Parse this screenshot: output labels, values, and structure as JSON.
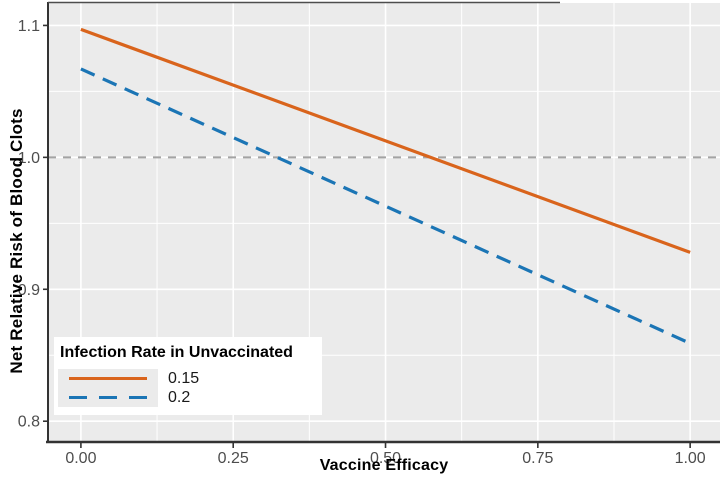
{
  "chart_data": {
    "type": "line",
    "title": "",
    "xlabel": "Vaccine Efficacy",
    "ylabel": "Net Relative Risk of Blood Clots",
    "x_domain": [
      -0.054,
      1.049
    ],
    "y_domain": [
      0.785,
      1.117
    ],
    "x_ticks": [
      {
        "value": 0.0,
        "label": "0.00"
      },
      {
        "value": 0.25,
        "label": "0.25"
      },
      {
        "value": 0.5,
        "label": "0.50"
      },
      {
        "value": 0.75,
        "label": "0.75"
      },
      {
        "value": 1.0,
        "label": "1.00"
      }
    ],
    "x_minor_ticks": [
      0.125,
      0.375,
      0.625,
      0.875
    ],
    "y_ticks": [
      {
        "value": 0.8,
        "label": "0.8"
      },
      {
        "value": 0.9,
        "label": "0.9"
      },
      {
        "value": 1.0,
        "label": "1.0"
      },
      {
        "value": 1.1,
        "label": "1.1"
      }
    ],
    "y_minor_ticks": [
      0.85,
      0.95,
      1.05
    ],
    "reference_line": {
      "y": 1.0,
      "style": "dashed",
      "color": "#A3A3A3",
      "width": 2,
      "dash": "8 7"
    },
    "series": [
      {
        "name": "0.15",
        "color": "#D9641C",
        "style": "solid",
        "width": 3.2,
        "dash": "",
        "x": [
          0,
          1
        ],
        "y": [
          1.097,
          0.928
        ]
      },
      {
        "name": "0.2",
        "color": "#1B75B5",
        "style": "dashed",
        "width": 3.2,
        "dash": "15 9",
        "x": [
          0,
          1
        ],
        "y": [
          1.067,
          0.859
        ]
      }
    ],
    "legend": {
      "title": "Infection Rate in Unvaccinated",
      "position": "inside bottom-left",
      "entries": [
        {
          "label": "0.15",
          "line": "solid",
          "color": "#D9641C"
        },
        {
          "label": "0.2",
          "line": "dashed",
          "color": "#1B75B5"
        }
      ]
    },
    "colors": {
      "panel_background": "#EBEBEB",
      "grid": "#FFFFFF",
      "axis_line": "#333333",
      "tick_mark": "#333333",
      "tick_label": "#4D4D4D",
      "legend_key_background": "#EBEBEB"
    },
    "grid": "on",
    "legend_position": "bottom-left-inside"
  }
}
